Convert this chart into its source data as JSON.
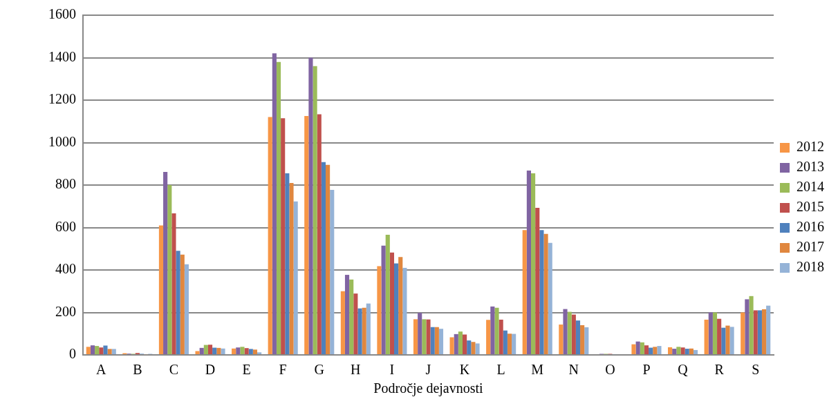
{
  "chart_data": {
    "type": "bar",
    "xlabel": "Področje dejavnosti",
    "categories": [
      "A",
      "B",
      "C",
      "D",
      "E",
      "F",
      "G",
      "H",
      "I",
      "J",
      "K",
      "L",
      "M",
      "N",
      "O",
      "P",
      "Q",
      "R",
      "S"
    ],
    "series": [
      {
        "name": "2012",
        "color": "#f79646",
        "values": [
          38,
          8,
          610,
          18,
          30,
          1120,
          1125,
          300,
          418,
          168,
          83,
          165,
          588,
          143,
          null,
          50,
          36,
          166,
          200
        ]
      },
      {
        "name": "2013",
        "color": "#8064a2",
        "values": [
          45,
          6,
          862,
          33,
          35,
          1420,
          1400,
          377,
          515,
          198,
          98,
          228,
          868,
          216,
          5,
          63,
          29,
          200,
          262
        ]
      },
      {
        "name": "2014",
        "color": "#9bbb59",
        "values": [
          42,
          5,
          800,
          47,
          38,
          1380,
          1360,
          355,
          566,
          168,
          110,
          222,
          855,
          203,
          5,
          59,
          38,
          200,
          277
        ]
      },
      {
        "name": "2015",
        "color": "#c0504d",
        "values": [
          35,
          9,
          667,
          48,
          32,
          1115,
          1133,
          289,
          482,
          167,
          96,
          166,
          693,
          190,
          5,
          45,
          35,
          170,
          210
        ]
      },
      {
        "name": "2016",
        "color": "#4f81bd",
        "values": [
          44,
          5,
          490,
          34,
          28,
          855,
          908,
          219,
          431,
          131,
          68,
          115,
          588,
          162,
          3,
          34,
          29,
          128,
          210
        ]
      },
      {
        "name": "2017",
        "color": "#e0873f",
        "values": [
          28,
          3,
          472,
          33,
          25,
          810,
          895,
          222,
          461,
          131,
          61,
          100,
          570,
          140,
          null,
          38,
          30,
          138,
          215
        ]
      },
      {
        "name": "2018",
        "color": "#95b3d7",
        "values": [
          28,
          5,
          427,
          30,
          12,
          723,
          777,
          242,
          410,
          123,
          54,
          99,
          528,
          130,
          null,
          42,
          23,
          132,
          232
        ]
      }
    ],
    "ylim": [
      0,
      1600
    ],
    "yticks": [
      0,
      200,
      400,
      600,
      800,
      1000,
      1200,
      1400,
      1600
    ],
    "grid": "y",
    "legend": "right"
  }
}
